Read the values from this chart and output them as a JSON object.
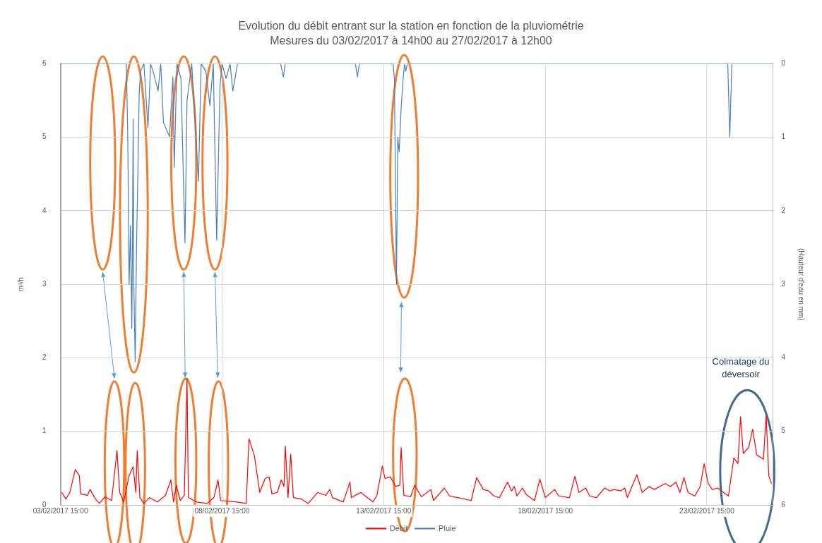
{
  "chart_data": {
    "type": "line",
    "title": "Evolution du débit entrant sur la station en fonction de la pluviométrie",
    "subtitle": "Mesures du 03/02/2017 à 14h00 au 27/02/2017 à 12h00",
    "ylabel": "m³/h",
    "y2label": "(Hauteur d'eau en mm)",
    "xlim": [
      "2017-02-03T15:00",
      "2017-02-25T16:00"
    ],
    "xticks": [
      {
        "value": "2017-02-03T15:00",
        "label": "03/02/2017 15:00"
      },
      {
        "value": "2017-02-08T15:00",
        "label": "08/02/2017 15:00"
      },
      {
        "value": "2017-02-13T15:00",
        "label": "13/02/2017 15:00"
      },
      {
        "value": "2017-02-18T15:00",
        "label": "18/02/2017 15:00"
      },
      {
        "value": "2017-02-23T15:00",
        "label": "23/02/2017 15:00"
      }
    ],
    "ylim": [
      0,
      6
    ],
    "yticks": [
      0,
      1,
      2,
      3,
      4,
      5,
      6
    ],
    "y2lim": [
      6,
      0
    ],
    "y2ticks": [
      0,
      1,
      2,
      3,
      4,
      5,
      6
    ],
    "grid": true,
    "legend": "bottom",
    "marker": "none",
    "line_style": "solid",
    "annotations": [
      "Colmatage du déversoir"
    ],
    "series": [
      {
        "name": "Débit",
        "color": "#ff0000",
        "x": [
          "2017-02-03T16:00",
          "2017-02-03T19:00",
          "2017-02-03T22:00",
          "2017-02-04T02:00",
          "2017-02-04T05:00",
          "2017-02-04T06:00",
          "2017-02-04T11:00",
          "2017-02-04T13:00",
          "2017-02-04T17:00",
          "2017-02-04T20:00",
          "2017-02-05T00:00",
          "2017-02-05T05:00",
          "2017-02-05T09:00",
          "2017-02-05T11:00",
          "2017-02-05T14:00",
          "2017-02-05T18:00",
          "2017-02-05T21:00",
          "2017-02-05T23:00",
          "2017-02-06T00:00",
          "2017-02-06T02:00",
          "2017-02-06T05:00",
          "2017-02-06T09:00",
          "2017-02-06T15:00",
          "2017-02-06T21:00",
          "2017-02-07T01:00",
          "2017-02-07T03:00",
          "2017-02-07T05:00",
          "2017-02-07T08:00",
          "2017-02-07T11:00",
          "2017-02-07T13:00",
          "2017-02-07T14:00",
          "2017-02-07T20:00",
          "2017-02-08T04:00",
          "2017-02-08T09:00",
          "2017-02-08T12:00",
          "2017-02-08T14:00",
          "2017-02-09T02:00",
          "2017-02-09T09:00",
          "2017-02-09T11:00",
          "2017-02-09T15:00",
          "2017-02-09T19:00",
          "2017-02-09T23:00",
          "2017-02-10T02:00",
          "2017-02-10T04:00",
          "2017-02-10T08:00",
          "2017-02-10T11:00",
          "2017-02-10T13:00",
          "2017-02-10T14:00",
          "2017-02-10T16:00",
          "2017-02-10T18:00",
          "2017-02-10T20:00",
          "2017-02-11T02:00",
          "2017-02-11T07:00",
          "2017-02-11T14:00",
          "2017-02-11T20:00",
          "2017-02-11T23:00",
          "2017-02-12T01:00",
          "2017-02-12T09:00",
          "2017-02-12T14:00",
          "2017-02-12T15:00",
          "2017-02-12T22:00",
          "2017-02-13T07:00",
          "2017-02-13T10:00",
          "2017-02-13T14:00",
          "2017-02-13T16:00",
          "2017-02-13T20:00",
          "2017-02-14T00:00",
          "2017-02-14T03:00",
          "2017-02-14T04:00",
          "2017-02-14T06:00",
          "2017-02-14T11:00",
          "2017-02-14T14:00",
          "2017-02-14T19:00",
          "2017-02-15T02:00",
          "2017-02-15T04:00",
          "2017-02-15T12:00",
          "2017-02-15T16:00",
          "2017-02-15T22:00",
          "2017-02-16T08:00",
          "2017-02-16T12:00",
          "2017-02-16T17:00",
          "2017-02-16T21:00",
          "2017-02-17T01:00",
          "2017-02-17T05:00",
          "2017-02-17T11:00",
          "2017-02-17T14:00",
          "2017-02-17T16:00",
          "2017-02-17T18:00",
          "2017-02-17T22:00",
          "2017-02-18T01:00",
          "2017-02-18T07:00",
          "2017-02-18T11:00",
          "2017-02-18T15:00",
          "2017-02-18T22:00",
          "2017-02-19T01:00",
          "2017-02-19T09:00",
          "2017-02-19T13:00",
          "2017-02-19T16:00",
          "2017-02-19T21:00",
          "2017-02-20T00:00",
          "2017-02-20T05:00",
          "2017-02-20T11:00",
          "2017-02-20T15:00",
          "2017-02-20T18:00",
          "2017-02-20T23:00",
          "2017-02-21T02:00",
          "2017-02-21T04:00",
          "2017-02-21T11:00",
          "2017-02-21T15:00",
          "2017-02-21T20:00",
          "2017-02-22T00:00",
          "2017-02-22T08:00",
          "2017-02-22T12:00",
          "2017-02-22T16:00",
          "2017-02-22T19:00",
          "2017-02-22T22:00",
          "2017-02-23T01:00",
          "2017-02-23T06:00",
          "2017-02-23T10:00",
          "2017-02-23T13:00",
          "2017-02-23T16:00",
          "2017-02-23T19:00",
          "2017-02-23T23:00",
          "2017-02-24T07:00",
          "2017-02-24T11:00",
          "2017-02-24T14:00",
          "2017-02-24T16:00",
          "2017-02-24T18:00",
          "2017-02-24T22:00",
          "2017-02-25T01:00",
          "2017-02-25T04:00",
          "2017-02-25T09:00",
          "2017-02-25T11:00",
          "2017-02-25T13:00",
          "2017-02-25T15:00"
        ],
        "values": [
          0.17,
          0.08,
          0.17,
          0.48,
          0.4,
          0.15,
          0.13,
          0.21,
          0.08,
          0.02,
          0.11,
          0.06,
          0.74,
          0.17,
          0.04,
          0.4,
          0.52,
          0.17,
          0.74,
          0.1,
          0.02,
          0.1,
          0.04,
          0.13,
          0.34,
          0.04,
          0.27,
          0.06,
          0.13,
          1.72,
          0.1,
          0.04,
          0.02,
          0.1,
          0.34,
          0.06,
          0.04,
          0.02,
          0.9,
          0.67,
          0.17,
          0.36,
          0.38,
          0.15,
          0.17,
          0.34,
          0.25,
          0.8,
          0.1,
          0.69,
          0.1,
          0.08,
          0.02,
          0.17,
          0.13,
          0.21,
          0.1,
          0.04,
          0.31,
          0.1,
          0.17,
          0.04,
          0.13,
          0.53,
          0.36,
          0.38,
          0.25,
          0.27,
          0.78,
          0.13,
          0.11,
          0.27,
          0.11,
          0.21,
          0.06,
          0.23,
          0.12,
          0.1,
          0.06,
          0.37,
          0.21,
          0.19,
          0.12,
          0.1,
          0.31,
          0.19,
          0.25,
          0.12,
          0.23,
          0.14,
          0.06,
          0.35,
          0.1,
          0.21,
          0.12,
          0.1,
          0.39,
          0.17,
          0.23,
          0.12,
          0.1,
          0.23,
          0.19,
          0.21,
          0.19,
          0.23,
          0.1,
          0.41,
          0.17,
          0.25,
          0.21,
          0.29,
          0.25,
          0.31,
          0.17,
          0.37,
          0.17,
          0.12,
          0.25,
          0.56,
          0.29,
          0.21,
          0.23,
          0.12,
          0.64,
          0.56,
          1.2,
          0.7,
          0.78,
          1.03,
          0.68,
          0.62,
          1.22,
          0.39,
          0.29
        ]
      },
      {
        "name": "Pluie",
        "color": "#4a7ebb",
        "axis": "y2",
        "x": [
          "2017-02-03T15:00",
          "2017-02-05T16:00",
          "2017-02-05T17:00",
          "2017-02-05T18:00",
          "2017-02-05T19:00",
          "2017-02-05T20:00",
          "2017-02-05T20:30",
          "2017-02-05T21:00",
          "2017-02-05T21:30",
          "2017-02-05T22:30",
          "2017-02-05T23:30",
          "2017-02-06T00:30",
          "2017-02-06T01:30",
          "2017-02-06T02:30",
          "2017-02-06T05:00",
          "2017-02-06T08:00",
          "2017-02-06T10:00",
          "2017-02-06T12:30",
          "2017-02-06T15:30",
          "2017-02-06T17:30",
          "2017-02-06T19:30",
          "2017-02-07T00:00",
          "2017-02-07T02:30",
          "2017-02-07T03:30",
          "2017-02-07T05:30",
          "2017-02-07T08:30",
          "2017-02-07T11:30",
          "2017-02-07T13:00",
          "2017-02-07T16:30",
          "2017-02-07T21:30",
          "2017-02-07T23:30",
          "2017-02-08T03:00",
          "2017-02-08T06:00",
          "2017-02-08T08:30",
          "2017-02-08T11:00",
          "2017-02-08T13:30",
          "2017-02-08T15:00",
          "2017-02-08T18:00",
          "2017-02-08T21:00",
          "2017-02-08T23:00",
          "2017-02-09T02:30",
          "2017-02-10T10:30",
          "2017-02-10T12:30",
          "2017-02-10T14:00",
          "2017-02-12T18:00",
          "2017-02-12T19:30",
          "2017-02-12T21:00",
          "2017-02-13T22:00",
          "2017-02-13T23:00",
          "2017-02-14T00:30",
          "2017-02-14T01:30",
          "2017-02-14T02:30",
          "2017-02-14T04:00",
          "2017-02-14T05:30",
          "2017-02-14T06:30",
          "2017-02-14T07:30",
          "2017-02-14T08:30",
          "2017-02-24T06:30",
          "2017-02-24T08:00",
          "2017-02-24T09:30",
          "2017-02-25T16:00"
        ],
        "values": [
          0,
          0,
          1.0,
          3.0,
          2.2,
          3.6,
          2.4,
          0.75,
          3.0,
          4.05,
          2.5,
          1.5,
          0.4,
          0.1,
          0,
          0.87,
          0,
          0.15,
          0.37,
          0,
          0.8,
          0.99,
          0.18,
          1.41,
          0,
          0.2,
          2.44,
          0.5,
          0,
          1.6,
          0,
          0.1,
          0.57,
          0,
          2.4,
          0.3,
          0,
          0.2,
          0,
          0.37,
          0,
          0,
          0.18,
          0,
          0,
          0.18,
          0,
          0,
          0.2,
          3.0,
          1.0,
          1.2,
          0.6,
          0.2,
          0,
          0.1,
          0,
          0,
          1.0,
          0,
          0
        ]
      }
    ]
  }
}
